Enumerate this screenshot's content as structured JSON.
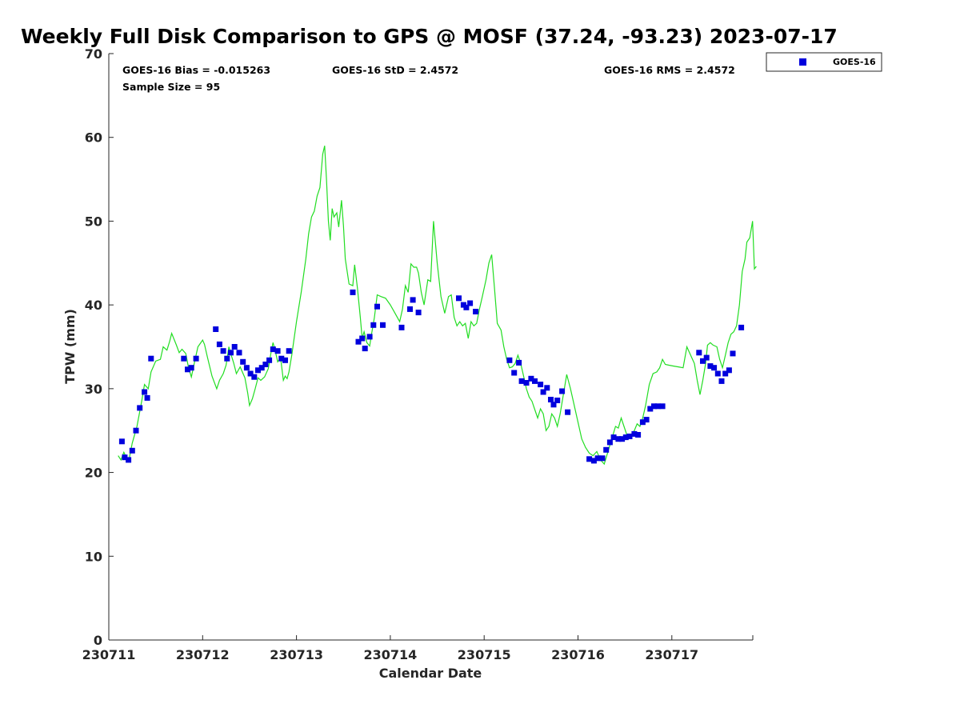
{
  "chart_data": {
    "type": "scatter",
    "title": "Weekly Full Disk Comparison to GPS @ MOSF (37.24, -93.23) 2023-07-17",
    "xlabel": "Calendar Date",
    "ylabel": "TPW (mm)",
    "ylim": [
      0,
      70
    ],
    "xlim": [
      0,
      6.9
    ],
    "y_ticks": [
      "0",
      "10",
      "20",
      "30",
      "40",
      "50",
      "60",
      "70"
    ],
    "y_tick_values": [
      0,
      10,
      20,
      30,
      40,
      50,
      60,
      70
    ],
    "x_ticks": [
      "230711",
      "230712",
      "230713",
      "230714",
      "230715",
      "230716",
      "230717"
    ],
    "x_tick_values": [
      0,
      1,
      2,
      3,
      4,
      5,
      6
    ],
    "legend_position": "top-right outside",
    "stats": {
      "bias": "GOES-16 Bias = -0.015263",
      "std": "GOES-16 StD = 2.4572",
      "rms": "GOES-16 RMS = 2.4572",
      "sample": "Sample Size = 95"
    },
    "series": [
      {
        "name": "GOES-16",
        "style": "square markers",
        "color": "#0000dd",
        "points": [
          [
            0.14,
            23.7
          ],
          [
            0.17,
            21.8
          ],
          [
            0.21,
            21.5
          ],
          [
            0.25,
            22.6
          ],
          [
            0.29,
            25.0
          ],
          [
            0.33,
            27.7
          ],
          [
            0.38,
            29.6
          ],
          [
            0.41,
            28.9
          ],
          [
            0.45,
            33.6
          ],
          [
            0.8,
            33.6
          ],
          [
            0.84,
            32.3
          ],
          [
            0.88,
            32.5
          ],
          [
            0.93,
            33.6
          ],
          [
            1.14,
            37.1
          ],
          [
            1.18,
            35.3
          ],
          [
            1.22,
            34.5
          ],
          [
            1.26,
            33.6
          ],
          [
            1.3,
            34.3
          ],
          [
            1.34,
            35.0
          ],
          [
            1.39,
            34.3
          ],
          [
            1.43,
            33.2
          ],
          [
            1.47,
            32.5
          ],
          [
            1.51,
            31.8
          ],
          [
            1.55,
            31.4
          ],
          [
            1.59,
            32.2
          ],
          [
            1.63,
            32.5
          ],
          [
            1.67,
            32.9
          ],
          [
            1.71,
            33.4
          ],
          [
            1.75,
            34.7
          ],
          [
            1.8,
            34.5
          ],
          [
            1.84,
            33.6
          ],
          [
            1.88,
            33.4
          ],
          [
            1.92,
            34.5
          ],
          [
            2.6,
            41.5
          ],
          [
            2.66,
            35.6
          ],
          [
            2.7,
            36.0
          ],
          [
            2.73,
            34.8
          ],
          [
            2.78,
            36.2
          ],
          [
            2.82,
            37.6
          ],
          [
            2.86,
            39.8
          ],
          [
            2.92,
            37.6
          ],
          [
            3.12,
            37.3
          ],
          [
            3.21,
            39.5
          ],
          [
            3.24,
            40.6
          ],
          [
            3.3,
            39.1
          ],
          [
            3.73,
            40.8
          ],
          [
            3.78,
            40.0
          ],
          [
            3.81,
            39.7
          ],
          [
            3.85,
            40.2
          ],
          [
            3.91,
            39.2
          ],
          [
            4.27,
            33.4
          ],
          [
            4.32,
            31.9
          ],
          [
            4.37,
            33.1
          ],
          [
            4.4,
            30.9
          ],
          [
            4.45,
            30.7
          ],
          [
            4.5,
            31.2
          ],
          [
            4.54,
            30.9
          ],
          [
            4.6,
            30.5
          ],
          [
            4.63,
            29.6
          ],
          [
            4.67,
            30.1
          ],
          [
            4.71,
            28.7
          ],
          [
            4.74,
            28.1
          ],
          [
            4.78,
            28.6
          ],
          [
            4.83,
            29.7
          ],
          [
            4.89,
            27.2
          ],
          [
            5.12,
            21.6
          ],
          [
            5.17,
            21.4
          ],
          [
            5.21,
            21.7
          ],
          [
            5.26,
            21.7
          ],
          [
            5.3,
            22.7
          ],
          [
            5.34,
            23.6
          ],
          [
            5.38,
            24.2
          ],
          [
            5.43,
            24.0
          ],
          [
            5.47,
            24.0
          ],
          [
            5.51,
            24.2
          ],
          [
            5.55,
            24.3
          ],
          [
            5.6,
            24.6
          ],
          [
            5.64,
            24.5
          ],
          [
            5.69,
            26.0
          ],
          [
            5.73,
            26.3
          ],
          [
            5.77,
            27.6
          ],
          [
            5.81,
            27.9
          ],
          [
            5.85,
            27.9
          ],
          [
            5.9,
            27.9
          ],
          [
            6.29,
            34.3
          ],
          [
            6.33,
            33.3
          ],
          [
            6.37,
            33.7
          ],
          [
            6.41,
            32.7
          ],
          [
            6.45,
            32.5
          ],
          [
            6.49,
            31.8
          ],
          [
            6.53,
            30.9
          ],
          [
            6.57,
            31.8
          ],
          [
            6.61,
            32.2
          ],
          [
            6.65,
            34.2
          ],
          [
            6.74,
            37.3
          ]
        ]
      },
      {
        "name": "GPS",
        "style": "line",
        "color": "#22dd22",
        "points": [
          [
            0.1,
            22.0
          ],
          [
            0.13,
            21.5
          ],
          [
            0.16,
            22.4
          ],
          [
            0.2,
            21.5
          ],
          [
            0.22,
            21.8
          ],
          [
            0.25,
            23.5
          ],
          [
            0.3,
            25.5
          ],
          [
            0.35,
            28.5
          ],
          [
            0.38,
            30.5
          ],
          [
            0.42,
            30.0
          ],
          [
            0.45,
            32.0
          ],
          [
            0.5,
            33.3
          ],
          [
            0.55,
            33.5
          ],
          [
            0.58,
            35.0
          ],
          [
            0.62,
            34.6
          ],
          [
            0.65,
            35.7
          ],
          [
            0.67,
            36.6
          ],
          [
            0.72,
            35.2
          ],
          [
            0.75,
            34.3
          ],
          [
            0.78,
            34.7
          ],
          [
            0.82,
            34.2
          ],
          [
            0.85,
            32.5
          ],
          [
            0.88,
            31.4
          ],
          [
            0.92,
            33.5
          ],
          [
            0.95,
            35.0
          ],
          [
            1.0,
            35.8
          ],
          [
            1.02,
            35.3
          ],
          [
            1.05,
            33.8
          ],
          [
            1.1,
            31.5
          ],
          [
            1.15,
            30.0
          ],
          [
            1.18,
            31.0
          ],
          [
            1.22,
            31.8
          ],
          [
            1.25,
            32.8
          ],
          [
            1.28,
            35.0
          ],
          [
            1.31,
            33.8
          ],
          [
            1.33,
            33.1
          ],
          [
            1.36,
            31.8
          ],
          [
            1.4,
            32.6
          ],
          [
            1.45,
            31.3
          ],
          [
            1.48,
            29.5
          ],
          [
            1.5,
            28.0
          ],
          [
            1.53,
            28.8
          ],
          [
            1.56,
            30.0
          ],
          [
            1.59,
            31.3
          ],
          [
            1.62,
            31.0
          ],
          [
            1.66,
            31.4
          ],
          [
            1.7,
            32.4
          ],
          [
            1.73,
            34.4
          ],
          [
            1.75,
            35.5
          ],
          [
            1.78,
            34.2
          ],
          [
            1.8,
            33.2
          ],
          [
            1.83,
            33.7
          ],
          [
            1.86,
            31.0
          ],
          [
            1.88,
            31.5
          ],
          [
            1.9,
            31.2
          ],
          [
            1.92,
            32.0
          ],
          [
            1.95,
            34.0
          ],
          [
            2.0,
            38.0
          ],
          [
            2.05,
            41.5
          ],
          [
            2.1,
            45.5
          ],
          [
            2.13,
            48.5
          ],
          [
            2.16,
            50.5
          ],
          [
            2.19,
            51.2
          ],
          [
            2.22,
            53.0
          ],
          [
            2.25,
            54.0
          ],
          [
            2.28,
            58.0
          ],
          [
            2.3,
            59.0
          ],
          [
            2.32,
            55.0
          ],
          [
            2.34,
            50.0
          ],
          [
            2.36,
            47.7
          ],
          [
            2.38,
            51.5
          ],
          [
            2.4,
            50.5
          ],
          [
            2.43,
            51.0
          ],
          [
            2.45,
            49.3
          ],
          [
            2.48,
            52.5
          ],
          [
            2.5,
            49.5
          ],
          [
            2.52,
            45.5
          ],
          [
            2.56,
            42.5
          ],
          [
            2.6,
            42.3
          ],
          [
            2.62,
            44.8
          ],
          [
            2.65,
            42.0
          ],
          [
            2.68,
            38.5
          ],
          [
            2.7,
            36.0
          ],
          [
            2.72,
            36.8
          ],
          [
            2.75,
            35.5
          ],
          [
            2.78,
            35.1
          ],
          [
            2.8,
            36.5
          ],
          [
            2.83,
            38.5
          ],
          [
            2.86,
            41.2
          ],
          [
            2.9,
            41.0
          ],
          [
            2.95,
            40.8
          ],
          [
            3.0,
            40.0
          ],
          [
            3.05,
            39.0
          ],
          [
            3.1,
            38.0
          ],
          [
            3.13,
            39.5
          ],
          [
            3.16,
            42.3
          ],
          [
            3.19,
            41.5
          ],
          [
            3.22,
            44.9
          ],
          [
            3.25,
            44.5
          ],
          [
            3.28,
            44.5
          ],
          [
            3.3,
            43.8
          ],
          [
            3.33,
            41.5
          ],
          [
            3.36,
            40.0
          ],
          [
            3.4,
            43.0
          ],
          [
            3.43,
            42.8
          ],
          [
            3.46,
            50.0
          ],
          [
            3.5,
            45.0
          ],
          [
            3.54,
            41.0
          ],
          [
            3.58,
            39.0
          ],
          [
            3.62,
            41.0
          ],
          [
            3.65,
            41.2
          ],
          [
            3.68,
            38.5
          ],
          [
            3.71,
            37.5
          ],
          [
            3.74,
            38.0
          ],
          [
            3.77,
            37.5
          ],
          [
            3.8,
            37.8
          ],
          [
            3.83,
            36.0
          ],
          [
            3.86,
            38.0
          ],
          [
            3.89,
            37.5
          ],
          [
            3.92,
            37.8
          ],
          [
            3.95,
            39.5
          ],
          [
            3.98,
            41.0
          ],
          [
            4.02,
            43.0
          ],
          [
            4.05,
            45.0
          ],
          [
            4.08,
            46.0
          ],
          [
            4.11,
            42.0
          ],
          [
            4.14,
            37.8
          ],
          [
            4.18,
            37.0
          ],
          [
            4.21,
            35.0
          ],
          [
            4.24,
            33.5
          ],
          [
            4.27,
            32.5
          ],
          [
            4.3,
            32.6
          ],
          [
            4.33,
            33.0
          ],
          [
            4.36,
            34.0
          ],
          [
            4.39,
            33.0
          ],
          [
            4.42,
            31.5
          ],
          [
            4.45,
            30.0
          ],
          [
            4.48,
            29.0
          ],
          [
            4.51,
            28.5
          ],
          [
            4.54,
            27.5
          ],
          [
            4.57,
            26.5
          ],
          [
            4.6,
            27.6
          ],
          [
            4.63,
            27.0
          ],
          [
            4.66,
            25.0
          ],
          [
            4.69,
            25.5
          ],
          [
            4.72,
            27.0
          ],
          [
            4.75,
            26.5
          ],
          [
            4.78,
            25.5
          ],
          [
            4.81,
            27.0
          ],
          [
            4.84,
            29.0
          ],
          [
            4.88,
            31.7
          ],
          [
            4.92,
            30.0
          ],
          [
            4.96,
            28.0
          ],
          [
            5.0,
            26.0
          ],
          [
            5.04,
            24.0
          ],
          [
            5.08,
            23.0
          ],
          [
            5.12,
            22.3
          ],
          [
            5.16,
            22.0
          ],
          [
            5.2,
            22.5
          ],
          [
            5.24,
            21.5
          ],
          [
            5.28,
            21.0
          ],
          [
            5.32,
            22.5
          ],
          [
            5.36,
            24.0
          ],
          [
            5.4,
            25.5
          ],
          [
            5.43,
            25.3
          ],
          [
            5.46,
            26.5
          ],
          [
            5.49,
            25.5
          ],
          [
            5.52,
            24.5
          ],
          [
            5.56,
            24.2
          ],
          [
            5.6,
            25.0
          ],
          [
            5.63,
            25.8
          ],
          [
            5.66,
            25.5
          ],
          [
            5.69,
            26.5
          ],
          [
            5.72,
            28.0
          ],
          [
            5.76,
            30.5
          ],
          [
            5.8,
            31.8
          ],
          [
            5.84,
            32.0
          ],
          [
            5.87,
            32.5
          ],
          [
            5.9,
            33.5
          ],
          [
            5.93,
            32.9
          ],
          [
            5.97,
            32.8
          ],
          [
            6.02,
            32.7
          ],
          [
            6.07,
            32.6
          ],
          [
            6.12,
            32.5
          ],
          [
            6.16,
            35.0
          ],
          [
            6.2,
            34.0
          ],
          [
            6.24,
            33.0
          ],
          [
            6.27,
            31.0
          ],
          [
            6.3,
            29.3
          ],
          [
            6.33,
            31.0
          ],
          [
            6.36,
            33.0
          ],
          [
            6.38,
            35.2
          ],
          [
            6.41,
            35.5
          ],
          [
            6.44,
            35.2
          ],
          [
            6.48,
            35.0
          ],
          [
            6.51,
            33.5
          ],
          [
            6.54,
            32.5
          ],
          [
            6.57,
            34.0
          ],
          [
            6.6,
            35.5
          ],
          [
            6.63,
            36.5
          ],
          [
            6.66,
            36.8
          ],
          [
            6.69,
            37.5
          ],
          [
            6.72,
            40.0
          ],
          [
            6.75,
            44.0
          ],
          [
            6.78,
            45.5
          ],
          [
            6.8,
            47.5
          ],
          [
            6.83,
            48.0
          ],
          [
            6.86,
            50.0
          ],
          [
            6.88,
            44.3
          ],
          [
            6.9,
            44.6
          ]
        ]
      }
    ]
  }
}
